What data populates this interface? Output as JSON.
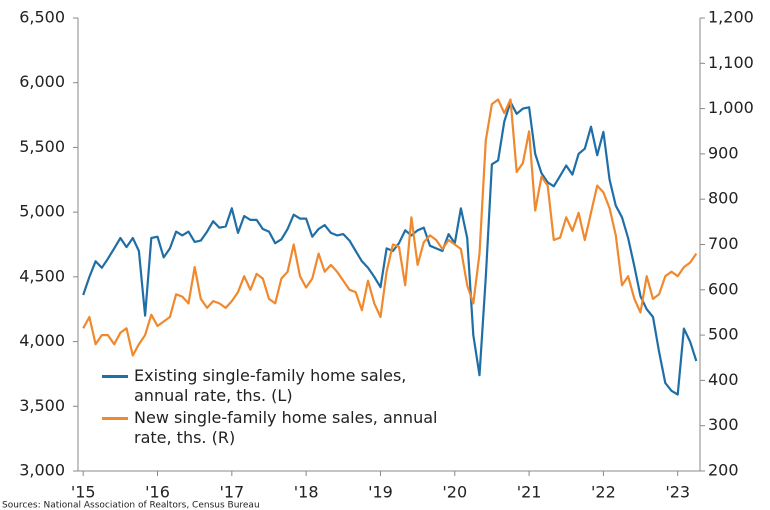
{
  "chart_data": {
    "type": "line",
    "source": "Sources: National Association of Realtors, Census Bureau",
    "x": [
      2015,
      2015.083,
      2015.167,
      2015.25,
      2015.333,
      2015.417,
      2015.5,
      2015.583,
      2015.667,
      2015.75,
      2015.833,
      2015.917,
      2016,
      2016.083,
      2016.167,
      2016.25,
      2016.333,
      2016.417,
      2016.5,
      2016.583,
      2016.667,
      2016.75,
      2016.833,
      2016.917,
      2017,
      2017.083,
      2017.167,
      2017.25,
      2017.333,
      2017.417,
      2017.5,
      2017.583,
      2017.667,
      2017.75,
      2017.833,
      2017.917,
      2018,
      2018.083,
      2018.167,
      2018.25,
      2018.333,
      2018.417,
      2018.5,
      2018.583,
      2018.667,
      2018.75,
      2018.833,
      2018.917,
      2019,
      2019.083,
      2019.167,
      2019.25,
      2019.333,
      2019.417,
      2019.5,
      2019.583,
      2019.667,
      2019.75,
      2019.833,
      2019.917,
      2020,
      2020.083,
      2020.167,
      2020.25,
      2020.333,
      2020.417,
      2020.5,
      2020.583,
      2020.667,
      2020.75,
      2020.833,
      2020.917,
      2021,
      2021.083,
      2021.167,
      2021.25,
      2021.333,
      2021.417,
      2021.5,
      2021.583,
      2021.667,
      2021.75,
      2021.833,
      2021.917,
      2022,
      2022.083,
      2022.167,
      2022.25,
      2022.333,
      2022.417,
      2022.5,
      2022.583,
      2022.667,
      2022.75,
      2022.833,
      2022.917,
      2023,
      2023.083,
      2023.167,
      2023.25
    ],
    "series": [
      {
        "name": "Existing single-family home sales, annual rate, ths. (L)",
        "color": "#1f6fa6",
        "axis": "y",
        "values": [
          4360,
          4500,
          4620,
          4570,
          4640,
          4720,
          4800,
          4730,
          4800,
          4700,
          4200,
          4800,
          4810,
          4650,
          4720,
          4850,
          4820,
          4850,
          4770,
          4780,
          4850,
          4930,
          4880,
          4890,
          5030,
          4840,
          4970,
          4940,
          4940,
          4870,
          4850,
          4760,
          4790,
          4870,
          4980,
          4950,
          4950,
          4810,
          4870,
          4900,
          4840,
          4820,
          4830,
          4780,
          4700,
          4620,
          4570,
          4500,
          4420,
          4720,
          4700,
          4760,
          4860,
          4820,
          4860,
          4880,
          4740,
          4720,
          4700,
          4830,
          4760,
          5030,
          4800,
          4050,
          3740,
          4500,
          5370,
          5400,
          5700,
          5850,
          5760,
          5800,
          5810,
          5450,
          5300,
          5230,
          5200,
          5280,
          5360,
          5290,
          5450,
          5490,
          5660,
          5440,
          5620,
          5250,
          5050,
          4960,
          4800,
          4580,
          4350,
          4250,
          4190,
          3920,
          3680,
          3620,
          3590,
          4100,
          4000,
          3850
        ]
      },
      {
        "name": "New single-family home sales, annual rate, ths. (R)",
        "color": "#f0892e",
        "axis": "y2",
        "values": [
          515,
          540,
          480,
          500,
          500,
          480,
          505,
          515,
          455,
          480,
          500,
          545,
          520,
          530,
          540,
          590,
          585,
          570,
          650,
          580,
          560,
          575,
          570,
          560,
          575,
          595,
          630,
          600,
          635,
          625,
          580,
          570,
          625,
          640,
          700,
          630,
          605,
          625,
          680,
          640,
          655,
          640,
          620,
          600,
          595,
          555,
          620,
          570,
          540,
          640,
          700,
          695,
          610,
          760,
          655,
          705,
          720,
          710,
          690,
          710,
          700,
          690,
          610,
          570,
          680,
          930,
          1010,
          1020,
          990,
          1020,
          860,
          880,
          950,
          775,
          850,
          830,
          710,
          715,
          760,
          730,
          770,
          710,
          770,
          830,
          815,
          780,
          720,
          610,
          630,
          580,
          550,
          630,
          580,
          590,
          630,
          640,
          630,
          650,
          660,
          680
        ]
      }
    ],
    "xlim": [
      2014.93,
      2023.3
    ],
    "xticks": [
      {
        "value": 2015,
        "label": "'15"
      },
      {
        "value": 2016,
        "label": "'16"
      },
      {
        "value": 2017,
        "label": "'17"
      },
      {
        "value": 2018,
        "label": "'18"
      },
      {
        "value": 2019,
        "label": "'19"
      },
      {
        "value": 2020,
        "label": "'20"
      },
      {
        "value": 2021,
        "label": "'21"
      },
      {
        "value": 2022,
        "label": "'22"
      },
      {
        "value": 2023,
        "label": "'23"
      }
    ],
    "ylim": [
      3000,
      6500
    ],
    "yticks": [
      {
        "value": 3000,
        "label": "3,000"
      },
      {
        "value": 3500,
        "label": "3,500"
      },
      {
        "value": 4000,
        "label": "4,000"
      },
      {
        "value": 4500,
        "label": "4,500"
      },
      {
        "value": 5000,
        "label": "5,000"
      },
      {
        "value": 5500,
        "label": "5,500"
      },
      {
        "value": 6000,
        "label": "6,000"
      },
      {
        "value": 6500,
        "label": "6,500"
      }
    ],
    "y2lim": [
      200,
      1200
    ],
    "y2ticks": [
      200,
      300,
      400,
      500,
      600,
      700,
      800,
      900,
      {
        "value": 1000,
        "label": "1,000"
      },
      {
        "value": 1100,
        "label": "1,100"
      },
      {
        "value": 1200,
        "label": "1,200"
      }
    ],
    "legend": "lower left"
  }
}
